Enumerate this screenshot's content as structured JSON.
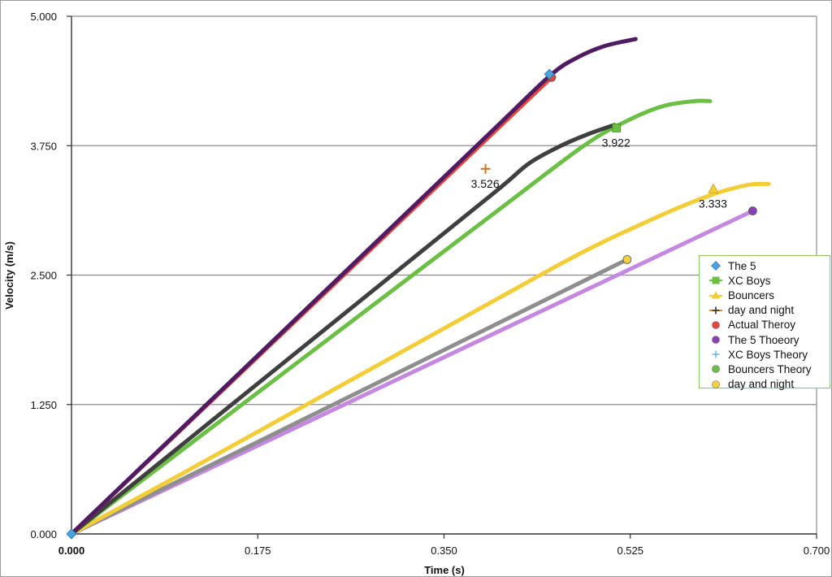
{
  "chart_data": {
    "type": "line",
    "title": "",
    "xlabel": "Time (s)",
    "ylabel": "Velocity (m/s)",
    "xlim": [
      0,
      0.7
    ],
    "ylim": [
      0,
      5
    ],
    "x_ticks": [
      "0.000",
      "0.175",
      "0.350",
      "0.525",
      "0.700"
    ],
    "y_ticks": [
      "0.000",
      "1.250",
      "2.500",
      "3.750",
      "5.000"
    ],
    "grid": "horizontal",
    "legend_position": "right",
    "series": [
      {
        "name": "The 5 Thoeory",
        "color": "#c488e0",
        "width": 5,
        "points": [
          [
            0,
            0
          ],
          [
            0.64,
            3.12
          ]
        ],
        "marker": "circle",
        "marker_color": "#8a3fb8",
        "marker_at": [
          0.64,
          3.12
        ]
      },
      {
        "name": "day and night",
        "color": "#8e8e8e",
        "width": 5,
        "points": [
          [
            0,
            0
          ],
          [
            0.518,
            2.63
          ]
        ],
        "marker": "circle",
        "marker_color": "#f5d040",
        "marker_at": [
          0.522,
          2.65
        ]
      },
      {
        "name": "Bouncers",
        "color": "#f2cd38",
        "width": 5,
        "points": [
          [
            0,
            0
          ],
          [
            0.1,
            0.56
          ],
          [
            0.2,
            1.13
          ],
          [
            0.3,
            1.7
          ],
          [
            0.4,
            2.27
          ],
          [
            0.48,
            2.72
          ],
          [
            0.55,
            3.06
          ],
          [
            0.6,
            3.27
          ],
          [
            0.635,
            3.37
          ],
          [
            0.655,
            3.38
          ]
        ],
        "marker": "triangle",
        "marker_color": "#f2cd38",
        "marker_at": [
          0.603,
          3.333
        ],
        "data_label": "3.333",
        "label_at": [
          0.603,
          3.333
        ]
      },
      {
        "name": "XC Boys",
        "color": "#6cbf45",
        "width": 5,
        "points": [
          [
            0,
            0
          ],
          [
            0.1,
            0.78
          ],
          [
            0.2,
            1.56
          ],
          [
            0.3,
            2.34
          ],
          [
            0.4,
            3.12
          ],
          [
            0.48,
            3.74
          ],
          [
            0.52,
            3.98
          ],
          [
            0.555,
            4.13
          ],
          [
            0.585,
            4.18
          ],
          [
            0.6,
            4.18
          ]
        ],
        "marker": "square",
        "marker_color": "#6cbf45",
        "marker_at": [
          0.512,
          3.922
        ],
        "data_label": "3.922",
        "label_at": [
          0.512,
          3.922
        ]
      },
      {
        "name": "Actual Theroy",
        "color": "#3f3f3f",
        "width": 5,
        "points": [
          [
            0,
            0
          ],
          [
            0.1,
            0.83
          ],
          [
            0.2,
            1.66
          ],
          [
            0.3,
            2.49
          ],
          [
            0.4,
            3.32
          ],
          [
            0.43,
            3.58
          ],
          [
            0.46,
            3.75
          ],
          [
            0.485,
            3.86
          ],
          [
            0.51,
            3.95
          ]
        ],
        "marker": "circle",
        "marker_color": "#e04b3c",
        "marker_at": [
          0.451,
          4.41
        ]
      },
      {
        "name": "Actual Theroy",
        "color": "#e8453c",
        "width": 5,
        "points": [
          [
            0,
            0
          ],
          [
            0.451,
            4.41
          ]
        ],
        "marker": "circle",
        "marker_color": "#e04b3c",
        "marker_at": [
          0.451,
          4.41
        ]
      },
      {
        "name": "The 5",
        "color": "#4f1b63",
        "width": 5,
        "points": [
          [
            0,
            0
          ],
          [
            0.1,
            0.985
          ],
          [
            0.2,
            1.97
          ],
          [
            0.3,
            2.955
          ],
          [
            0.4,
            3.94
          ],
          [
            0.45,
            4.43
          ],
          [
            0.475,
            4.6
          ],
          [
            0.5,
            4.71
          ],
          [
            0.53,
            4.78
          ]
        ],
        "marker": "diamond",
        "marker_color": "#4aa3df",
        "marker_at": [
          0.449,
          4.44
        ]
      },
      {
        "name": "day and night",
        "color": "#e0902a",
        "width": 1,
        "points": [],
        "marker": "plus",
        "marker_color": "#c9752a",
        "marker_at": [
          0.389,
          3.526
        ],
        "data_label": "3.526",
        "label_at": [
          0.389,
          3.526
        ]
      }
    ],
    "legend": [
      {
        "label": "The 5",
        "symbol": "diamond",
        "color": "#4aa3df"
      },
      {
        "label": "XC Boys",
        "symbol": "square",
        "color": "#6cbf45"
      },
      {
        "label": "Bouncers",
        "symbol": "triangle",
        "color": "#f2cd38"
      },
      {
        "label": "day and night",
        "symbol": "plus",
        "color": "#c9752a"
      },
      {
        "label": "Actual Theroy",
        "symbol": "circle",
        "color": "#e8453c"
      },
      {
        "label": "The 5 Thoeory",
        "symbol": "circle",
        "color": "#8a3fb8"
      },
      {
        "label": "XC Boys Theory",
        "symbol": "cross",
        "color": "#4aa3df"
      },
      {
        "label": "Bouncers Theory",
        "symbol": "circle",
        "color": "#6cbf45"
      },
      {
        "label": "day and night",
        "symbol": "circle",
        "color": "#f5d040"
      }
    ]
  }
}
